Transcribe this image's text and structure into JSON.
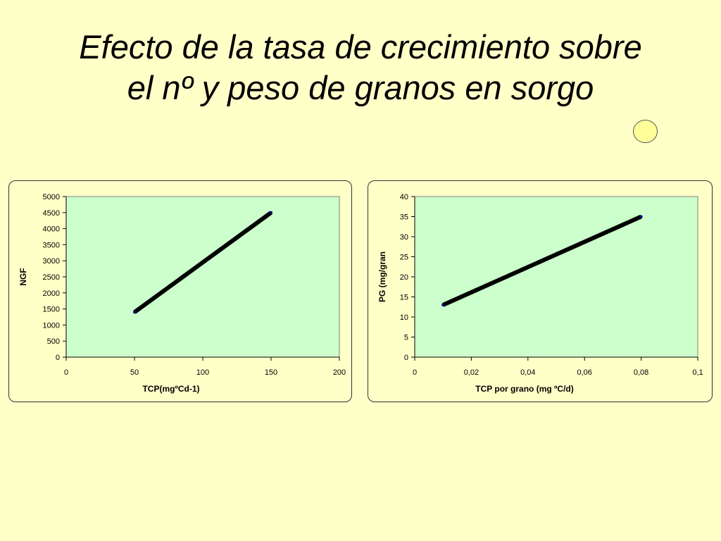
{
  "slide": {
    "title_line1": "Efecto de la tasa de crecimiento sobre",
    "title_line2": "el nº y peso de granos en sorgo"
  },
  "colors": {
    "background": "#ffffc8",
    "plot_area": "#ccffcc",
    "line": "#000000",
    "marker": "#000080"
  },
  "chart_data": [
    {
      "type": "line",
      "title": "",
      "xlabel": "TCP(mgºCd-1)",
      "ylabel": "NGF",
      "xlim": [
        0,
        200
      ],
      "ylim": [
        0,
        5000
      ],
      "x_ticks": [
        "0",
        "50",
        "100",
        "150",
        "200"
      ],
      "y_ticks": [
        "0",
        "500",
        "1000",
        "1500",
        "2000",
        "2500",
        "3000",
        "3500",
        "4000",
        "4500",
        "5000"
      ],
      "x_tick_values": [
        0,
        50,
        100,
        150,
        200
      ],
      "y_tick_values": [
        0,
        500,
        1000,
        1500,
        2000,
        2500,
        3000,
        3500,
        4000,
        4500,
        5000
      ],
      "grid": false,
      "series": [
        {
          "x": [
            50,
            150
          ],
          "y": [
            1400,
            4500
          ]
        }
      ]
    },
    {
      "type": "line",
      "title": "",
      "xlabel": "TCP por grano (mg ºC/d)",
      "ylabel": "PG (mg/gran",
      "xlim": [
        0,
        0.1
      ],
      "ylim": [
        0,
        40
      ],
      "x_ticks": [
        "0",
        "0,02",
        "0,04",
        "0,06",
        "0,08",
        "0,1"
      ],
      "y_ticks": [
        "0",
        "5",
        "10",
        "15",
        "20",
        "25",
        "30",
        "35",
        "40"
      ],
      "x_tick_values": [
        0,
        0.02,
        0.04,
        0.06,
        0.08,
        0.1
      ],
      "y_tick_values": [
        0,
        5,
        10,
        15,
        20,
        25,
        30,
        35,
        40
      ],
      "grid": false,
      "series": [
        {
          "x": [
            0.01,
            0.08
          ],
          "y": [
            13,
            35
          ]
        }
      ]
    }
  ]
}
